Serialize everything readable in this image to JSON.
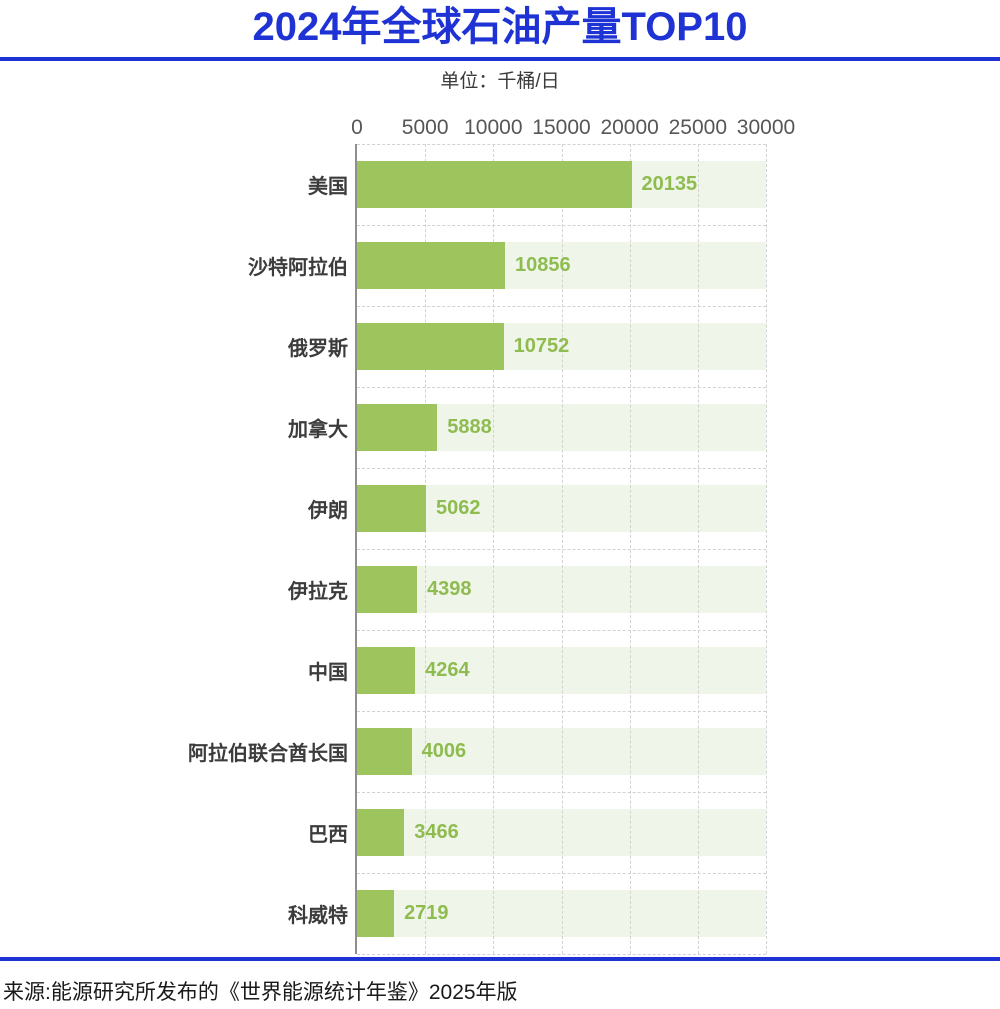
{
  "header": {
    "title": "2024年全球石油产量TOP10",
    "unit_label": "单位：千桶/日"
  },
  "chart_data": {
    "type": "bar",
    "orientation": "horizontal",
    "title": "2024年全球石油产量TOP10",
    "unit": "千桶/日",
    "categories": [
      "美国",
      "沙特阿拉伯",
      "俄罗斯",
      "加拿大",
      "伊朗",
      "伊拉克",
      "中国",
      "阿拉伯联合酋长国",
      "巴西",
      "科威特"
    ],
    "values": [
      20135,
      10856,
      10752,
      5888,
      5062,
      4398,
      4264,
      4006,
      3466,
      2719
    ],
    "x_ticks": [
      0,
      5000,
      10000,
      15000,
      20000,
      25000,
      30000
    ],
    "xlim": [
      0,
      30000
    ],
    "xlabel": "",
    "ylabel": "",
    "grid": "dashed",
    "legend": "none",
    "value_labels": "outside-end"
  },
  "footer": {
    "source": "来源:能源研究所发布的《世界能源统计年鉴》2025年版"
  },
  "colors": {
    "accent_blue": "#1f33d4",
    "bar_green": "#9dc45d",
    "value_green": "#8fbc50",
    "track_green": "#eff5e8",
    "grid_gray": "#d2d2d2",
    "axis_gray": "#8f8f8f"
  }
}
